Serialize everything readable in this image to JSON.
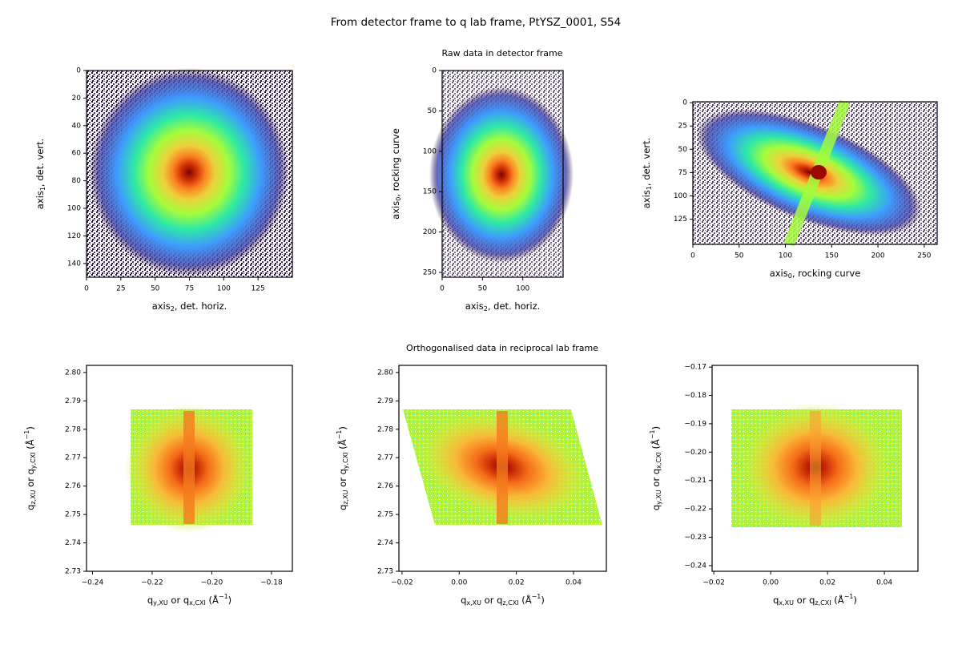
{
  "title": "From detector frame to q lab frame, PtYSZ_0001, S54",
  "row_titles": [
    "Raw data in detector frame",
    "Orthogonalised data in reciprocal lab frame"
  ],
  "chart_data": [
    {
      "type": "image",
      "xlabel": [
        {
          "text": "axis"
        },
        {
          "sub": "2"
        },
        {
          "text": ", det. horiz."
        }
      ],
      "ylabel": [
        {
          "text": "axis"
        },
        {
          "sub": "1"
        },
        {
          "text": ", det. vert."
        }
      ],
      "xlim": [
        0,
        150
      ],
      "ylim": [
        150,
        0
      ],
      "xticks": [
        0,
        25,
        50,
        75,
        100,
        125
      ],
      "yticks": [
        0,
        20,
        40,
        60,
        80,
        100,
        120,
        140
      ]
    },
    {
      "type": "image",
      "xlabel": [
        {
          "text": "axis"
        },
        {
          "sub": "2"
        },
        {
          "text": ", det. horiz."
        }
      ],
      "ylabel": [
        {
          "text": "axis"
        },
        {
          "sub": "0"
        },
        {
          "text": ", rocking curve"
        }
      ],
      "xlim": [
        0,
        150
      ],
      "ylim": [
        256,
        0
      ],
      "xticks": [
        0,
        50,
        100
      ],
      "yticks": [
        0,
        50,
        100,
        150,
        200,
        250
      ]
    },
    {
      "type": "image",
      "xlabel": [
        {
          "text": "axis"
        },
        {
          "sub": "0"
        },
        {
          "text": ", rocking curve"
        }
      ],
      "ylabel": [
        {
          "text": "axis"
        },
        {
          "sub": "1"
        },
        {
          "text": ", det. vert."
        }
      ],
      "xlim": [
        0,
        264
      ],
      "ylim": [
        152,
        -1
      ],
      "xticks": [
        0,
        50,
        100,
        150,
        200,
        250
      ],
      "yticks": [
        0,
        25,
        50,
        75,
        100,
        125
      ]
    },
    {
      "type": "image",
      "xlabel": [
        {
          "text": "q"
        },
        {
          "sub": "y,XU"
        },
        {
          "text": " or q"
        },
        {
          "sub": "x,CXI"
        },
        {
          "text": " (Å"
        },
        {
          "sup": "−1"
        },
        {
          "text": ")"
        }
      ],
      "ylabel": [
        {
          "text": "q"
        },
        {
          "sub": "z,XU"
        },
        {
          "text": " or q"
        },
        {
          "sub": "y,CXI"
        },
        {
          "text": " (Å"
        },
        {
          "sup": "−1"
        },
        {
          "text": ")"
        }
      ],
      "xlim": [
        -0.242,
        -0.173
      ],
      "ylim": [
        2.73,
        2.8025
      ],
      "xticks": [
        {
          "value": -0.24,
          "label": "−0.24"
        },
        {
          "value": -0.22,
          "label": "−0.22"
        },
        {
          "value": -0.2,
          "label": "−0.20"
        },
        {
          "value": -0.18,
          "label": "−0.18"
        }
      ],
      "yticks": [
        {
          "value": 2.73,
          "label": "2.73"
        },
        {
          "value": 2.74,
          "label": "2.74"
        },
        {
          "value": 2.75,
          "label": "2.75"
        },
        {
          "value": 2.76,
          "label": "2.76"
        },
        {
          "value": 2.77,
          "label": "2.77"
        },
        {
          "value": 2.78,
          "label": "2.78"
        },
        {
          "value": 2.79,
          "label": "2.79"
        },
        {
          "value": 2.8,
          "label": "2.80"
        }
      ]
    },
    {
      "type": "image",
      "xlabel": [
        {
          "text": "q"
        },
        {
          "sub": "x,XU"
        },
        {
          "text": " or q"
        },
        {
          "sub": "z,CXI"
        },
        {
          "text": " (Å"
        },
        {
          "sup": "−1"
        },
        {
          "text": ")"
        }
      ],
      "ylabel": [
        {
          "text": "q"
        },
        {
          "sub": "z,XU"
        },
        {
          "text": " or q"
        },
        {
          "sub": "y,CXI"
        },
        {
          "text": " (Å"
        },
        {
          "sup": "−1"
        },
        {
          "text": ")"
        }
      ],
      "xlim": [
        -0.0211,
        0.0515
      ],
      "ylim": [
        2.73,
        2.8025
      ],
      "xticks": [
        {
          "value": -0.02,
          "label": "−0.02"
        },
        {
          "value": 0,
          "label": "0.00"
        },
        0.02,
        0.04
      ],
      "yticks": [
        {
          "value": 2.73,
          "label": "2.73"
        },
        {
          "value": 2.74,
          "label": "2.74"
        },
        {
          "value": 2.75,
          "label": "2.75"
        },
        {
          "value": 2.76,
          "label": "2.76"
        },
        {
          "value": 2.77,
          "label": "2.77"
        },
        {
          "value": 2.78,
          "label": "2.78"
        },
        {
          "value": 2.79,
          "label": "2.79"
        },
        {
          "value": 2.8,
          "label": "2.80"
        }
      ]
    },
    {
      "type": "image",
      "xlabel": [
        {
          "text": "q"
        },
        {
          "sub": "x,XU"
        },
        {
          "text": " or q"
        },
        {
          "sub": "z,CXI"
        },
        {
          "text": " (Å"
        },
        {
          "sup": "−1"
        },
        {
          "text": ")"
        }
      ],
      "ylabel": [
        {
          "text": "q"
        },
        {
          "sub": "y,XU"
        },
        {
          "text": " or q"
        },
        {
          "sub": "x,CXI"
        },
        {
          "text": " (Å"
        },
        {
          "sup": "−1"
        },
        {
          "text": ")"
        }
      ],
      "xlim": [
        -0.0206,
        0.0518
      ],
      "ylim": [
        -0.242,
        -0.1694
      ],
      "xticks": [
        {
          "value": -0.02,
          "label": "−0.02"
        },
        {
          "value": 0,
          "label": "0.00"
        },
        0.02,
        0.04
      ],
      "yticks": [
        {
          "value": -0.24,
          "label": "−0.24"
        },
        {
          "value": -0.23,
          "label": "−0.23"
        },
        {
          "value": -0.22,
          "label": "−0.22"
        },
        {
          "value": -0.21,
          "label": "−0.21"
        },
        {
          "value": -0.2,
          "label": "−0.20"
        },
        {
          "value": -0.19,
          "label": "−0.19"
        },
        {
          "value": -0.18,
          "label": "−0.18"
        },
        {
          "value": -0.17,
          "label": "−0.17"
        }
      ]
    }
  ]
}
